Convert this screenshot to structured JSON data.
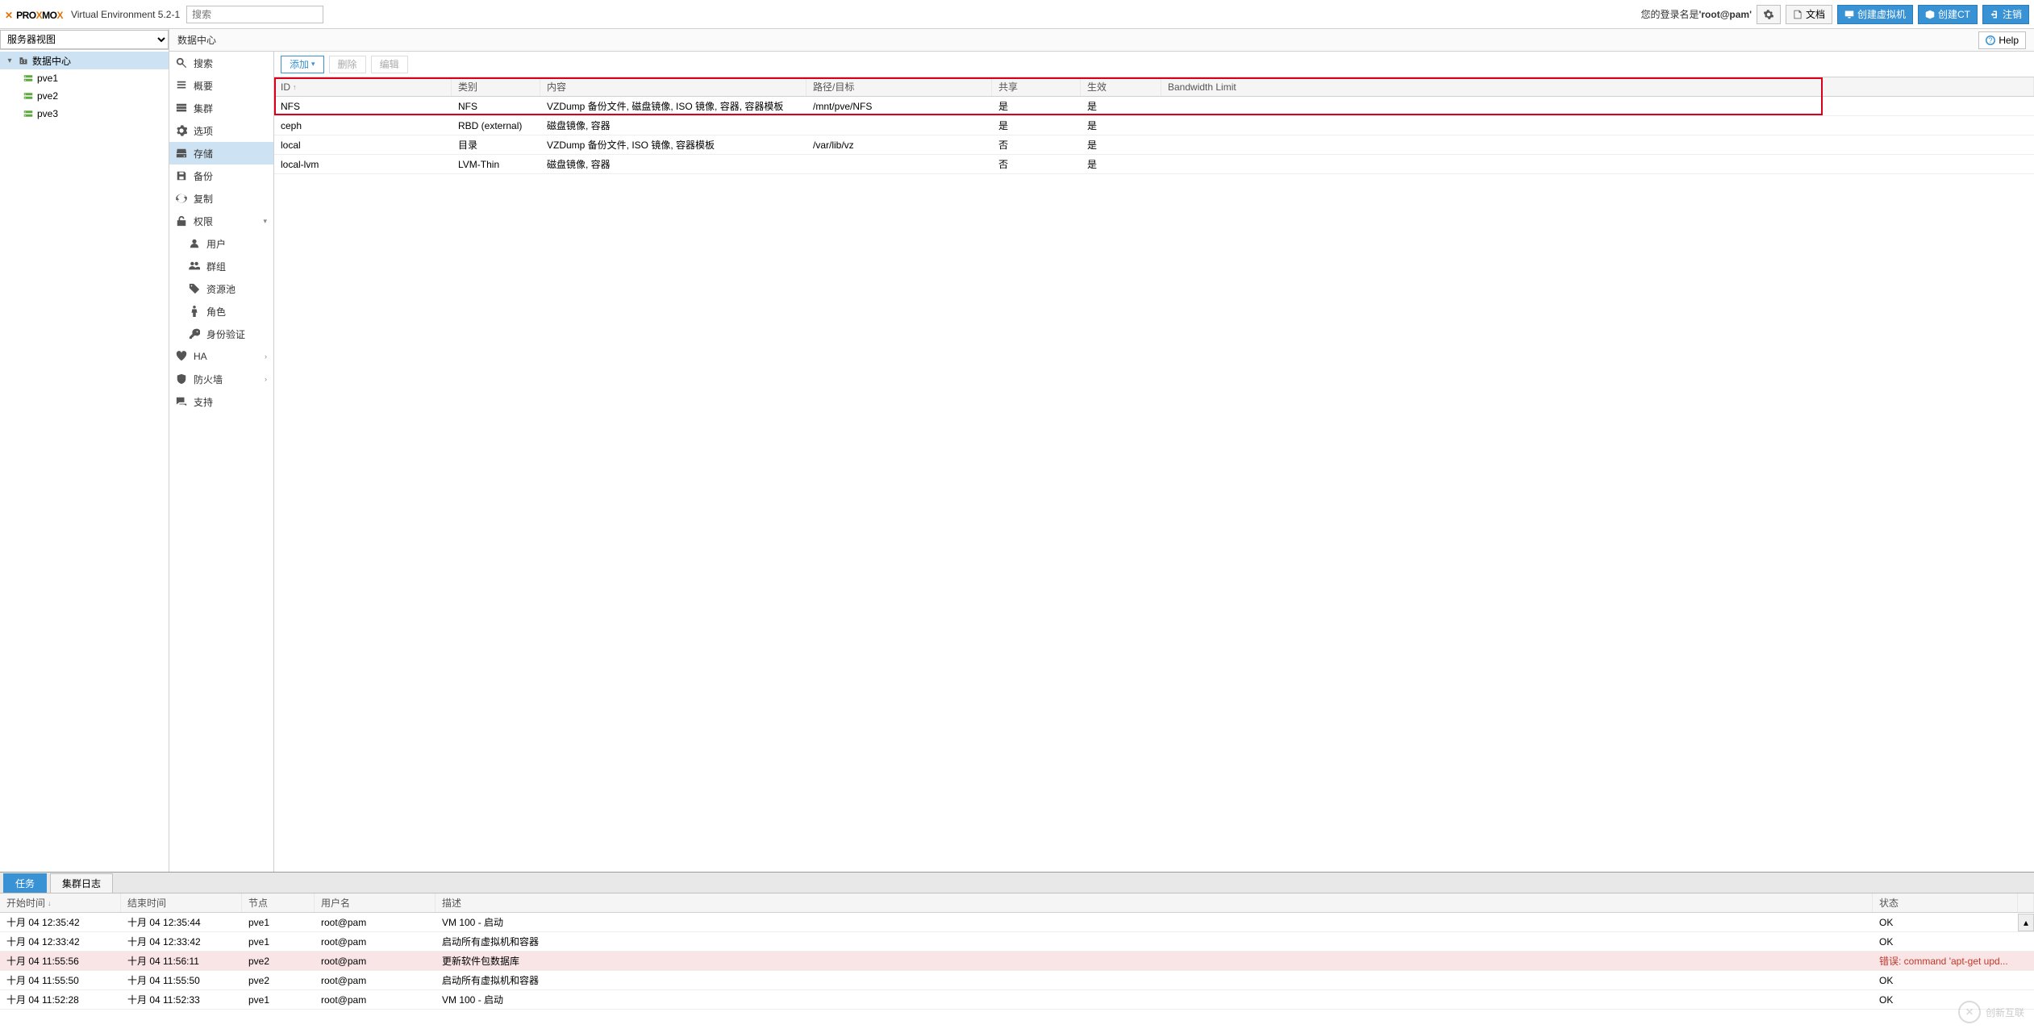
{
  "brand": {
    "p1": "PRO",
    "p2": "X",
    "p3": "MO",
    "p4": "X",
    "version": "Virtual Environment 5.2-1"
  },
  "search": {
    "placeholder": "搜索"
  },
  "top": {
    "login_prefix": "您的登录名是",
    "login_user": "'root@pam'",
    "docs": "文档",
    "create_vm": "创建虚拟机",
    "create_ct": "创建CT",
    "logout": "注销"
  },
  "view_selector": "服务器视图",
  "tree": {
    "root": "数据中心",
    "nodes": [
      "pve1",
      "pve2",
      "pve3"
    ]
  },
  "breadcrumb": "数据中心",
  "help": "Help",
  "conf_menu": {
    "search": "搜索",
    "summary": "概要",
    "cluster": "集群",
    "options": "选项",
    "storage": "存储",
    "backup": "备份",
    "replication": "复制",
    "permissions": "权限",
    "users": "用户",
    "groups": "群组",
    "pools": "资源池",
    "roles": "角色",
    "auth": "身份验证",
    "ha": "HA",
    "firewall": "防火墙",
    "support": "支持"
  },
  "toolbar": {
    "add": "添加",
    "remove": "删除",
    "edit": "编辑"
  },
  "storage_cols": {
    "id": "ID",
    "type": "类别",
    "content": "内容",
    "path": "路径/目标",
    "shared": "共享",
    "enabled": "生效",
    "bw": "Bandwidth Limit"
  },
  "storage_rows": [
    {
      "id": "NFS",
      "type": "NFS",
      "content": "VZDump 备份文件, 磁盘镜像, ISO 镜像, 容器, 容器模板",
      "path": "/mnt/pve/NFS",
      "shared": "是",
      "enabled": "是"
    },
    {
      "id": "ceph",
      "type": "RBD (external)",
      "content": "磁盘镜像, 容器",
      "path": "",
      "shared": "是",
      "enabled": "是"
    },
    {
      "id": "local",
      "type": "目录",
      "content": "VZDump 备份文件, ISO 镜像, 容器模板",
      "path": "/var/lib/vz",
      "shared": "否",
      "enabled": "是"
    },
    {
      "id": "local-lvm",
      "type": "LVM-Thin",
      "content": "磁盘镜像, 容器",
      "path": "",
      "shared": "否",
      "enabled": "是"
    }
  ],
  "log_tabs": {
    "tasks": "任务",
    "cluster_log": "集群日志"
  },
  "log_cols": {
    "start": "开始时间",
    "end": "结束时间",
    "node": "节点",
    "user": "用户名",
    "desc": "描述",
    "status": "状态"
  },
  "log_rows": [
    {
      "start": "十月 04 12:35:42",
      "end": "十月 04 12:35:44",
      "node": "pve1",
      "user": "root@pam",
      "desc": "VM 100 - 启动",
      "status": "OK",
      "err": false
    },
    {
      "start": "十月 04 12:33:42",
      "end": "十月 04 12:33:42",
      "node": "pve1",
      "user": "root@pam",
      "desc": "启动所有虚拟机和容器",
      "status": "OK",
      "err": false
    },
    {
      "start": "十月 04 11:55:56",
      "end": "十月 04 11:56:11",
      "node": "pve2",
      "user": "root@pam",
      "desc": "更新软件包数据库",
      "status": "错误: command 'apt-get upd...",
      "err": true
    },
    {
      "start": "十月 04 11:55:50",
      "end": "十月 04 11:55:50",
      "node": "pve2",
      "user": "root@pam",
      "desc": "启动所有虚拟机和容器",
      "status": "OK",
      "err": false
    },
    {
      "start": "十月 04 11:52:28",
      "end": "十月 04 11:52:33",
      "node": "pve1",
      "user": "root@pam",
      "desc": "VM 100 - 启动",
      "status": "OK",
      "err": false
    }
  ],
  "watermark": "创新互联"
}
